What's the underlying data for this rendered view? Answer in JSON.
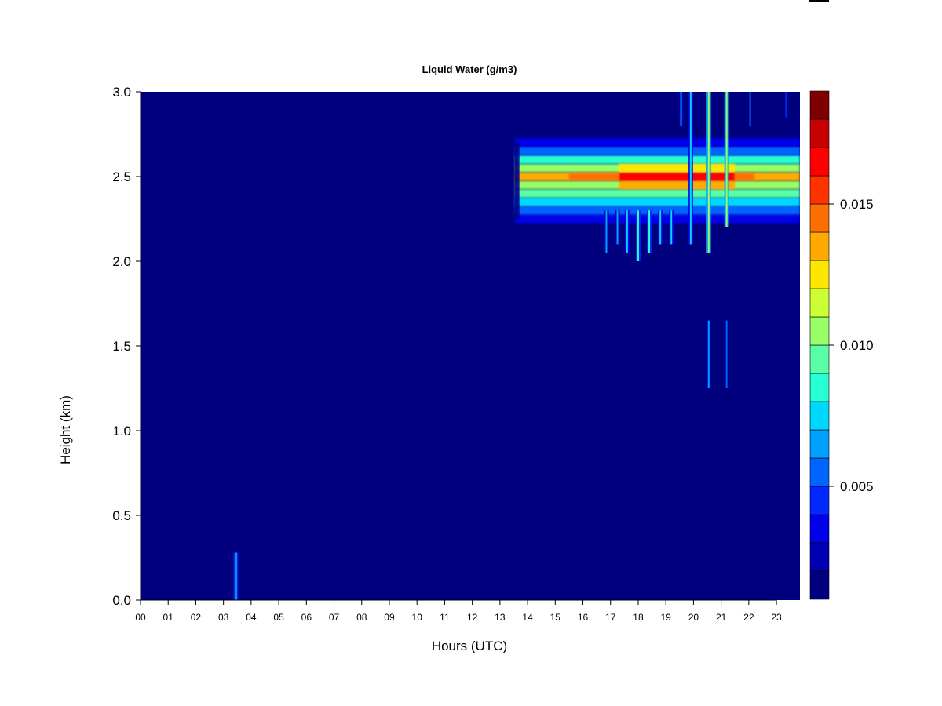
{
  "chart_data": {
    "type": "heatmap",
    "title": "Liquid Water (g/m3)",
    "xlabel": "Hours (UTC)",
    "ylabel": "Height (km)",
    "xlim": [
      0,
      23.85
    ],
    "ylim": [
      0,
      3.0
    ],
    "x_ticks": [
      {
        "value": 0,
        "label": "00"
      },
      {
        "value": 1,
        "label": "01"
      },
      {
        "value": 2,
        "label": "02"
      },
      {
        "value": 3,
        "label": "03"
      },
      {
        "value": 4,
        "label": "04"
      },
      {
        "value": 5,
        "label": "05"
      },
      {
        "value": 6,
        "label": "06"
      },
      {
        "value": 7,
        "label": "07"
      },
      {
        "value": 8,
        "label": "08"
      },
      {
        "value": 9,
        "label": "09"
      },
      {
        "value": 10,
        "label": "10"
      },
      {
        "value": 11,
        "label": "11"
      },
      {
        "value": 12,
        "label": "12"
      },
      {
        "value": 13,
        "label": "13"
      },
      {
        "value": 14,
        "label": "14"
      },
      {
        "value": 15,
        "label": "15"
      },
      {
        "value": 16,
        "label": "16"
      },
      {
        "value": 17,
        "label": "17"
      },
      {
        "value": 18,
        "label": "18"
      },
      {
        "value": 19,
        "label": "19"
      },
      {
        "value": 20,
        "label": "20"
      },
      {
        "value": 21,
        "label": "21"
      },
      {
        "value": 22,
        "label": "22"
      },
      {
        "value": 23,
        "label": "23"
      }
    ],
    "y_ticks": [
      {
        "value": 0.0,
        "label": "0.0"
      },
      {
        "value": 0.5,
        "label": "0.5"
      },
      {
        "value": 1.0,
        "label": "1.0"
      },
      {
        "value": 1.5,
        "label": "1.5"
      },
      {
        "value": 2.0,
        "label": "2.0"
      },
      {
        "value": 2.5,
        "label": "2.5"
      },
      {
        "value": 3.0,
        "label": "3.0"
      }
    ],
    "colorbar": {
      "range": [
        0.001,
        0.019
      ],
      "ticks": [
        {
          "value": 0.005,
          "label": "0.005"
        },
        {
          "value": 0.01,
          "label": "0.010"
        },
        {
          "value": 0.015,
          "label": "0.015"
        }
      ],
      "colors": [
        "#00007F",
        "#0000B2",
        "#0000EB",
        "#0028FF",
        "#0064FF",
        "#00A0FF",
        "#00D7FF",
        "#26FFD1",
        "#59FFA6",
        "#99FF66",
        "#CCFF33",
        "#FFE600",
        "#FFAA00",
        "#FF6E00",
        "#FF3300",
        "#FF0000",
        "#C70000",
        "#7F0000"
      ]
    },
    "background_value": 0.0,
    "main_cloud_layer": {
      "time_start": 13.55,
      "time_end": 23.85,
      "center_height_km": 2.5,
      "profile": [
        {
          "height": 2.25,
          "value": 0.003
        },
        {
          "height": 2.3,
          "value": 0.005
        },
        {
          "height": 2.35,
          "value": 0.007
        },
        {
          "height": 2.4,
          "value": 0.009
        },
        {
          "height": 2.45,
          "value": 0.011
        },
        {
          "height": 2.5,
          "value": 0.013
        },
        {
          "height": 2.55,
          "value": 0.011
        },
        {
          "height": 2.6,
          "value": 0.008
        },
        {
          "height": 2.65,
          "value": 0.005
        },
        {
          "height": 2.7,
          "value": 0.003
        }
      ],
      "peak_period": {
        "time_start": 17.3,
        "time_end": 21.5,
        "peak_value": 0.0165
      }
    },
    "vertical_streaks": [
      {
        "time": 3.45,
        "height_min": 0.0,
        "height_max": 0.28,
        "value": 0.008
      },
      {
        "time": 13.62,
        "height_min": 2.25,
        "height_max": 2.7,
        "value": 0.002
      },
      {
        "time": 16.85,
        "height_min": 2.05,
        "height_max": 2.3,
        "value": 0.006
      },
      {
        "time": 17.25,
        "height_min": 2.1,
        "height_max": 2.3,
        "value": 0.006
      },
      {
        "time": 17.6,
        "height_min": 2.05,
        "height_max": 2.3,
        "value": 0.007
      },
      {
        "time": 18.0,
        "height_min": 2.0,
        "height_max": 2.3,
        "value": 0.008
      },
      {
        "time": 18.4,
        "height_min": 2.05,
        "height_max": 2.3,
        "value": 0.008
      },
      {
        "time": 18.8,
        "height_min": 2.1,
        "height_max": 2.3,
        "value": 0.007
      },
      {
        "time": 19.2,
        "height_min": 2.1,
        "height_max": 2.3,
        "value": 0.007
      },
      {
        "time": 19.55,
        "height_min": 2.8,
        "height_max": 3.0,
        "value": 0.006
      },
      {
        "time": 19.9,
        "height_min": 2.1,
        "height_max": 3.0,
        "value": 0.007
      },
      {
        "time": 20.55,
        "height_min": 2.05,
        "height_max": 3.0,
        "value": 0.01
      },
      {
        "time": 20.55,
        "height_min": 1.25,
        "height_max": 1.65,
        "value": 0.006
      },
      {
        "time": 21.2,
        "height_min": 2.2,
        "height_max": 3.0,
        "value": 0.01
      },
      {
        "time": 21.2,
        "height_min": 1.25,
        "height_max": 1.65,
        "value": 0.005
      },
      {
        "time": 22.05,
        "height_min": 2.8,
        "height_max": 3.0,
        "value": 0.005
      },
      {
        "time": 23.35,
        "height_min": 2.85,
        "height_max": 3.0,
        "value": 0.004
      }
    ]
  }
}
